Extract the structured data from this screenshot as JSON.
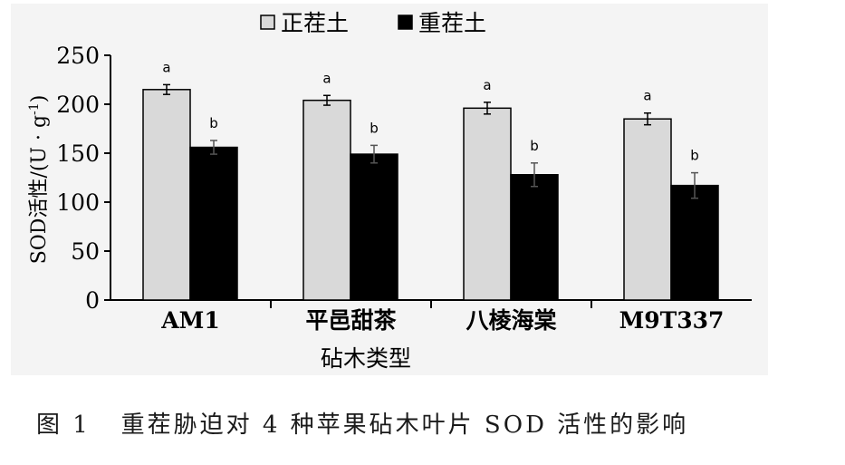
{
  "chart_data": {
    "type": "bar",
    "categories": [
      "AM1",
      "平邑甜茶",
      "八棱海棠",
      "M9T337"
    ],
    "series": [
      {
        "name": "正茬土",
        "values": [
          215,
          204,
          196,
          185
        ],
        "errors": [
          5,
          5,
          6,
          6
        ],
        "letters": [
          "a",
          "a",
          "a",
          "a"
        ],
        "color": "#d9d9d9"
      },
      {
        "name": "重茬土",
        "values": [
          156,
          149,
          128,
          117
        ],
        "errors": [
          7,
          9,
          12,
          13
        ],
        "letters": [
          "b",
          "b",
          "b",
          "b"
        ],
        "color": "#000000"
      }
    ],
    "xlabel": "砧木类型",
    "ylabel_main": "SOD活性/(U · g",
    "ylabel_sup": "-1",
    "ylabel_tail": ")",
    "ylim": [
      0,
      250
    ],
    "yticks": [
      0,
      50,
      100,
      150,
      200,
      250
    ],
    "legend_position": "top-center",
    "grid": false
  },
  "caption": "图 1   重茬胁迫对 4 种苹果砧木叶片 SOD 活性的影响"
}
